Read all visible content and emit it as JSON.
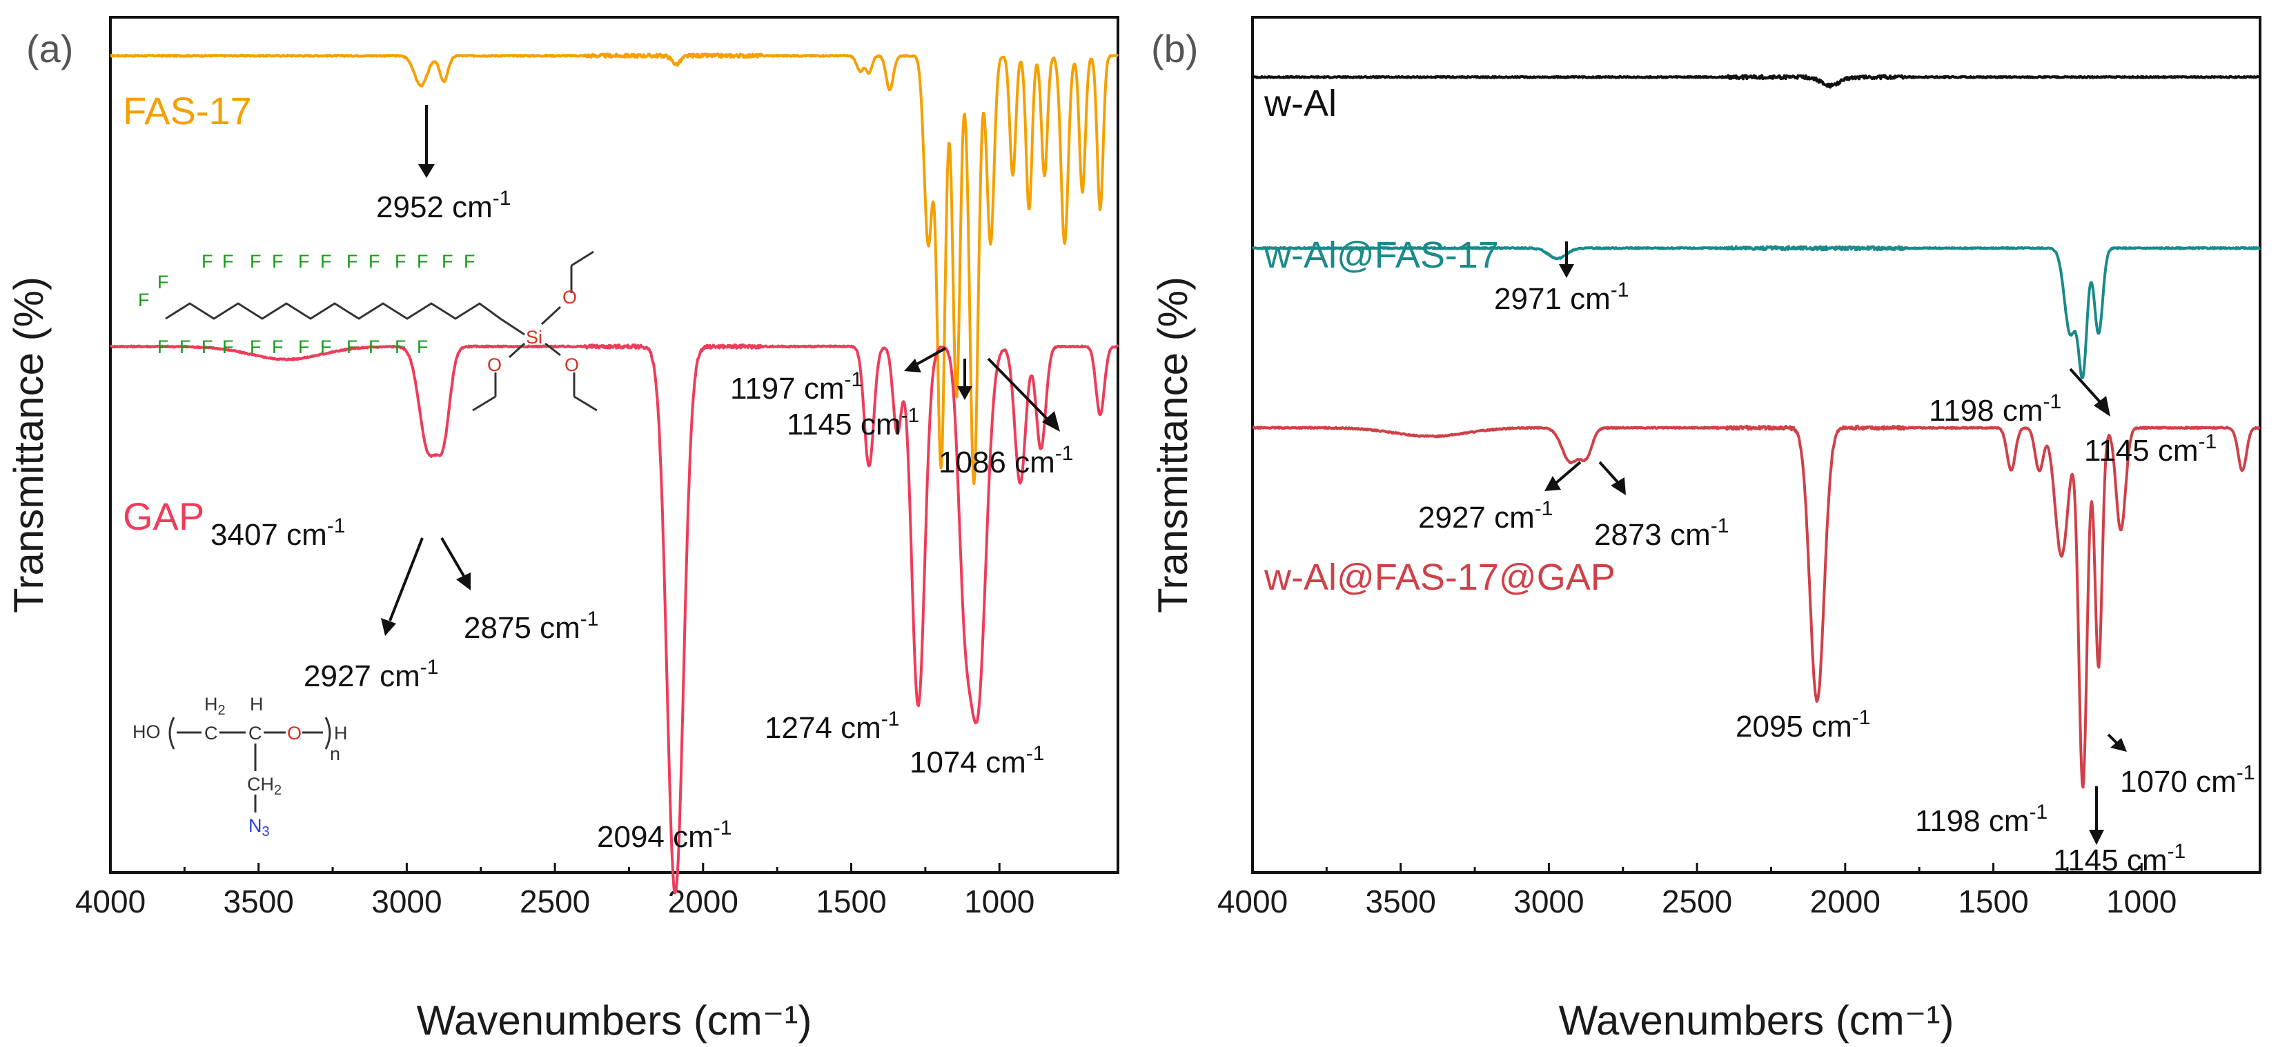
{
  "chart_data": [
    {
      "panel": "(a)",
      "type": "line",
      "xlabel": "Wavenumbers (cm⁻¹)",
      "ylabel": "Transmittance (%)",
      "xlim": [
        4000,
        600
      ],
      "x_ticks": [
        "4000",
        "3500",
        "3000",
        "2500",
        "2000",
        "1500",
        "1000"
      ],
      "x_tick_values": [
        4000,
        3500,
        3000,
        2500,
        2000,
        1500,
        1000
      ],
      "y_ticks_shown": false,
      "series": [
        {
          "name": "FAS-17",
          "color": "#F5A000",
          "baseline": 0.955,
          "bands": [
            {
              "x": 2952,
              "depth": 0.035,
              "width": 22
            },
            {
              "x": 2875,
              "depth": 0.03,
              "width": 14
            },
            {
              "x": 2090,
              "depth": 0.01,
              "width": 14
            },
            {
              "x": 1470,
              "depth": 0.018,
              "width": 12
            },
            {
              "x": 1440,
              "depth": 0.02,
              "width": 10
            },
            {
              "x": 1370,
              "depth": 0.04,
              "width": 12
            },
            {
              "x": 1240,
              "depth": 0.22,
              "width": 14
            },
            {
              "x": 1197,
              "depth": 0.48,
              "width": 13
            },
            {
              "x": 1145,
              "depth": 0.4,
              "width": 12
            },
            {
              "x": 1086,
              "depth": 0.5,
              "width": 14
            },
            {
              "x": 1030,
              "depth": 0.22,
              "width": 12
            },
            {
              "x": 955,
              "depth": 0.14,
              "width": 10
            },
            {
              "x": 900,
              "depth": 0.18,
              "width": 10
            },
            {
              "x": 848,
              "depth": 0.14,
              "width": 10
            },
            {
              "x": 780,
              "depth": 0.22,
              "width": 12
            },
            {
              "x": 720,
              "depth": 0.16,
              "width": 10
            },
            {
              "x": 660,
              "depth": 0.18,
              "width": 10
            }
          ]
        },
        {
          "name": "GAP",
          "color": "#EE3C5A",
          "baseline": 0.615,
          "bands": [
            {
              "x": 3407,
              "depth": 0.015,
              "width": 120
            },
            {
              "x": 2927,
              "depth": 0.12,
              "width": 30
            },
            {
              "x": 2875,
              "depth": 0.09,
              "width": 22
            },
            {
              "x": 2094,
              "depth": 0.64,
              "width": 28
            },
            {
              "x": 1440,
              "depth": 0.14,
              "width": 16
            },
            {
              "x": 1345,
              "depth": 0.1,
              "width": 14
            },
            {
              "x": 1274,
              "depth": 0.42,
              "width": 22
            },
            {
              "x": 1120,
              "depth": 0.22,
              "width": 20
            },
            {
              "x": 1074,
              "depth": 0.42,
              "width": 28
            },
            {
              "x": 930,
              "depth": 0.16,
              "width": 18
            },
            {
              "x": 860,
              "depth": 0.12,
              "width": 16
            },
            {
              "x": 660,
              "depth": 0.08,
              "width": 14
            }
          ]
        }
      ],
      "annotations": [
        {
          "base": "2952 cm",
          "exp": "-1"
        },
        {
          "base": "1197 cm",
          "exp": "-1"
        },
        {
          "base": "1145 cm",
          "exp": "-1"
        },
        {
          "base": "1086 cm",
          "exp": "-1"
        },
        {
          "base": "3407 cm",
          "exp": "-1"
        },
        {
          "base": "2927 cm",
          "exp": "-1"
        },
        {
          "base": "2875 cm",
          "exp": "-1"
        },
        {
          "base": "2094 cm",
          "exp": "-1"
        },
        {
          "base": "1274 cm",
          "exp": "-1"
        },
        {
          "base": "1074 cm",
          "exp": "-1"
        }
      ]
    },
    {
      "panel": "(b)",
      "type": "line",
      "xlabel": "Wavenumbers (cm⁻¹)",
      "ylabel": "Transmittance (%)",
      "xlim": [
        4000,
        600
      ],
      "x_ticks": [
        "4000",
        "3500",
        "3000",
        "2500",
        "2000",
        "1500",
        "1000"
      ],
      "x_tick_values": [
        4000,
        3500,
        3000,
        2500,
        2000,
        1500,
        1000
      ],
      "y_ticks_shown": false,
      "series": [
        {
          "name": "w-Al",
          "color": "#111111",
          "baseline": 0.93,
          "bands": [
            {
              "x": 2050,
              "depth": 0.01,
              "width": 30
            }
          ]
        },
        {
          "name": "w-Al@FAS-17",
          "color": "#1A8A8A",
          "baseline": 0.73,
          "bands": [
            {
              "x": 2971,
              "depth": 0.012,
              "width": 30
            },
            {
              "x": 1240,
              "depth": 0.1,
              "width": 20
            },
            {
              "x": 1198,
              "depth": 0.14,
              "width": 14
            },
            {
              "x": 1145,
              "depth": 0.1,
              "width": 14
            }
          ]
        },
        {
          "name": "w-Al@FAS-17@GAP",
          "color": "#D04048",
          "baseline": 0.52,
          "bands": [
            {
              "x": 3400,
              "depth": 0.01,
              "width": 120
            },
            {
              "x": 2927,
              "depth": 0.04,
              "width": 28
            },
            {
              "x": 2873,
              "depth": 0.03,
              "width": 20
            },
            {
              "x": 2095,
              "depth": 0.32,
              "width": 24
            },
            {
              "x": 1440,
              "depth": 0.05,
              "width": 14
            },
            {
              "x": 1345,
              "depth": 0.05,
              "width": 14
            },
            {
              "x": 1270,
              "depth": 0.15,
              "width": 22
            },
            {
              "x": 1198,
              "depth": 0.42,
              "width": 14
            },
            {
              "x": 1145,
              "depth": 0.28,
              "width": 12
            },
            {
              "x": 1070,
              "depth": 0.12,
              "width": 16
            },
            {
              "x": 660,
              "depth": 0.05,
              "width": 14
            }
          ]
        }
      ],
      "annotations": [
        {
          "base": "2971 cm",
          "exp": "-1"
        },
        {
          "base": "1198 cm",
          "exp": "-1"
        },
        {
          "base": "1145 cm",
          "exp": "-1"
        },
        {
          "base": "2927 cm",
          "exp": "-1"
        },
        {
          "base": "2873 cm",
          "exp": "-1"
        },
        {
          "base": "2095 cm",
          "exp": "-1"
        },
        {
          "base": "1198 cm",
          "exp": "-1"
        },
        {
          "base": "1070 cm",
          "exp": "-1"
        },
        {
          "base": "1145 cm",
          "exp": "-1"
        }
      ]
    }
  ],
  "structures": {
    "fas17": {
      "fluorine": "F",
      "silicon": "Si",
      "oxygen": "O"
    },
    "gap": {
      "ho": "HO",
      "h2": "H",
      "h2_sub": "2",
      "c": "C",
      "h": "H",
      "o": "O",
      "h_end": "H",
      "n": "n",
      "ch2_c": "CH",
      "ch2_sub": "2",
      "n3": "N",
      "n3_sub": "3"
    }
  }
}
